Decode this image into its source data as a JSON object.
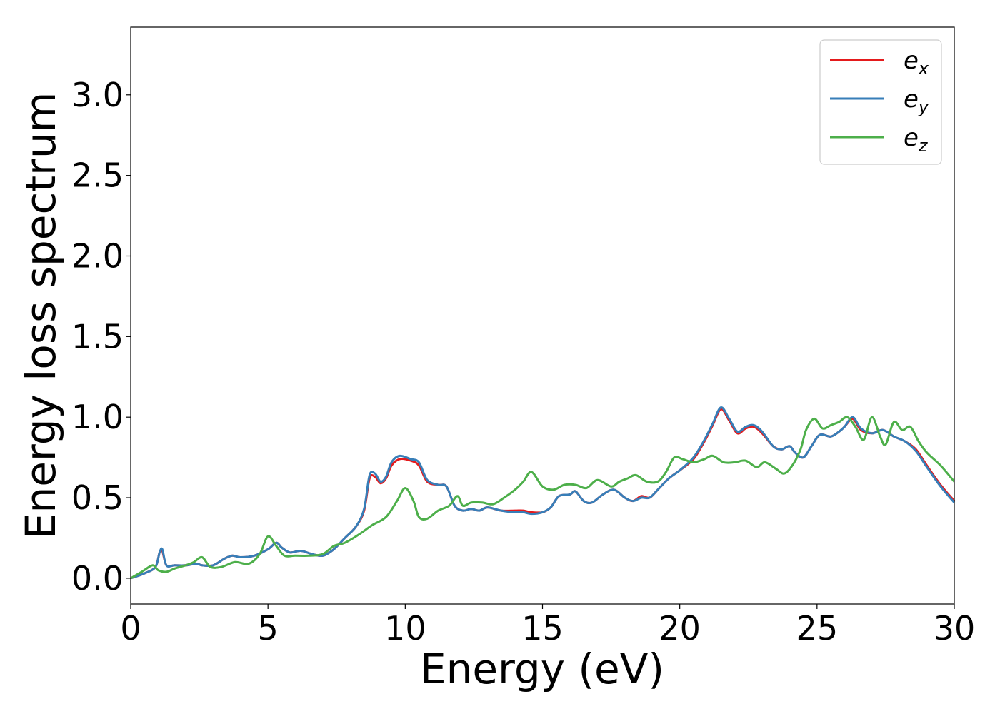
{
  "chart_data": {
    "type": "line",
    "xlabel": "Energy (eV)",
    "ylabel": "Energy loss spectrum",
    "xlim": [
      0,
      30
    ],
    "ylim": [
      -0.16,
      3.42
    ],
    "x_ticks": [
      "0",
      "5",
      "10",
      "15",
      "20",
      "25",
      "30"
    ],
    "y_ticks": [
      "0.0",
      "0.5",
      "1.0",
      "1.5",
      "2.0",
      "2.5",
      "3.0"
    ],
    "grid": false,
    "legend": {
      "placement": "top-right",
      "entries": [
        {
          "base": "e",
          "sub": "x",
          "color": "#e41a1c"
        },
        {
          "base": "e",
          "sub": "y",
          "color": "#377eb8"
        },
        {
          "base": "e",
          "sub": "z",
          "color": "#4daf4a"
        }
      ]
    },
    "series": [
      {
        "name": "e_x",
        "color": "#e41a1c",
        "x": [
          0,
          0.5,
          0.9,
          1.05,
          1.15,
          1.3,
          1.6,
          2.0,
          2.4,
          2.6,
          3.0,
          3.4,
          3.7,
          4.0,
          4.5,
          5.0,
          5.3,
          5.5,
          5.8,
          6.2,
          6.6,
          7.0,
          7.4,
          7.8,
          8.2,
          8.5,
          8.7,
          8.9,
          9.1,
          9.3,
          9.5,
          9.8,
          10.2,
          10.5,
          10.8,
          11.2,
          11.5,
          11.8,
          12.1,
          12.4,
          12.7,
          13.0,
          13.5,
          14.0,
          14.3,
          14.6,
          15.0,
          15.3,
          15.6,
          16.0,
          16.2,
          16.5,
          16.8,
          17.2,
          17.6,
          18.0,
          18.3,
          18.6,
          18.9,
          19.2,
          19.6,
          20.0,
          20.5,
          20.9,
          21.2,
          21.5,
          21.8,
          22.1,
          22.4,
          22.7,
          23.0,
          23.4,
          23.7,
          24.0,
          24.2,
          24.5,
          24.8,
          25.1,
          25.5,
          25.8,
          26.0,
          26.3,
          26.6,
          27.0,
          27.4,
          27.8,
          28.2,
          28.6,
          29.0,
          29.5,
          30.0
        ],
        "y": [
          0.0,
          0.03,
          0.07,
          0.16,
          0.17,
          0.08,
          0.08,
          0.08,
          0.09,
          0.08,
          0.08,
          0.12,
          0.14,
          0.13,
          0.14,
          0.18,
          0.22,
          0.19,
          0.16,
          0.17,
          0.15,
          0.14,
          0.18,
          0.25,
          0.32,
          0.42,
          0.62,
          0.63,
          0.59,
          0.62,
          0.7,
          0.74,
          0.73,
          0.7,
          0.6,
          0.58,
          0.57,
          0.45,
          0.42,
          0.43,
          0.42,
          0.44,
          0.42,
          0.42,
          0.42,
          0.41,
          0.41,
          0.44,
          0.51,
          0.52,
          0.54,
          0.48,
          0.47,
          0.52,
          0.55,
          0.5,
          0.48,
          0.51,
          0.5,
          0.55,
          0.62,
          0.67,
          0.74,
          0.85,
          0.95,
          1.05,
          0.98,
          0.9,
          0.93,
          0.94,
          0.9,
          0.82,
          0.8,
          0.82,
          0.78,
          0.75,
          0.82,
          0.89,
          0.88,
          0.91,
          0.94,
          0.99,
          0.92,
          0.9,
          0.92,
          0.88,
          0.85,
          0.8,
          0.7,
          0.58,
          0.48
        ]
      },
      {
        "name": "e_y",
        "color": "#377eb8",
        "x": [
          0,
          0.5,
          0.9,
          1.05,
          1.15,
          1.3,
          1.6,
          2.0,
          2.4,
          2.6,
          3.0,
          3.4,
          3.7,
          4.0,
          4.5,
          5.0,
          5.3,
          5.5,
          5.8,
          6.2,
          6.6,
          7.0,
          7.4,
          7.8,
          8.2,
          8.5,
          8.7,
          8.9,
          9.1,
          9.3,
          9.5,
          9.8,
          10.2,
          10.5,
          10.8,
          11.2,
          11.5,
          11.8,
          12.1,
          12.4,
          12.7,
          13.0,
          13.5,
          14.0,
          14.3,
          14.6,
          15.0,
          15.3,
          15.6,
          16.0,
          16.2,
          16.5,
          16.8,
          17.2,
          17.6,
          18.0,
          18.3,
          18.6,
          18.9,
          19.2,
          19.6,
          20.0,
          20.5,
          20.9,
          21.2,
          21.5,
          21.8,
          22.1,
          22.4,
          22.7,
          23.0,
          23.4,
          23.7,
          24.0,
          24.2,
          24.5,
          24.8,
          25.1,
          25.5,
          25.8,
          26.0,
          26.3,
          26.6,
          27.0,
          27.4,
          27.8,
          28.2,
          28.6,
          29.0,
          29.5,
          30.0
        ],
        "y": [
          0.0,
          0.03,
          0.07,
          0.16,
          0.18,
          0.08,
          0.08,
          0.08,
          0.09,
          0.08,
          0.08,
          0.12,
          0.14,
          0.13,
          0.14,
          0.18,
          0.22,
          0.19,
          0.16,
          0.17,
          0.15,
          0.14,
          0.18,
          0.25,
          0.32,
          0.43,
          0.64,
          0.65,
          0.6,
          0.63,
          0.72,
          0.76,
          0.74,
          0.72,
          0.61,
          0.58,
          0.57,
          0.45,
          0.42,
          0.43,
          0.42,
          0.44,
          0.42,
          0.41,
          0.41,
          0.4,
          0.41,
          0.44,
          0.51,
          0.52,
          0.54,
          0.48,
          0.47,
          0.52,
          0.55,
          0.5,
          0.48,
          0.5,
          0.5,
          0.55,
          0.62,
          0.67,
          0.75,
          0.86,
          0.96,
          1.06,
          0.99,
          0.91,
          0.94,
          0.95,
          0.91,
          0.82,
          0.8,
          0.82,
          0.78,
          0.75,
          0.82,
          0.89,
          0.88,
          0.91,
          0.94,
          1.0,
          0.93,
          0.9,
          0.92,
          0.88,
          0.85,
          0.79,
          0.69,
          0.57,
          0.47
        ]
      },
      {
        "name": "e_z",
        "color": "#4daf4a",
        "x": [
          0,
          0.4,
          0.8,
          1.0,
          1.3,
          1.6,
          2.0,
          2.3,
          2.6,
          2.9,
          3.3,
          3.8,
          4.3,
          4.7,
          5.0,
          5.3,
          5.6,
          6.0,
          6.5,
          7.0,
          7.4,
          7.8,
          8.3,
          8.8,
          9.3,
          9.7,
          10.0,
          10.3,
          10.5,
          10.8,
          11.2,
          11.6,
          11.9,
          12.1,
          12.4,
          12.8,
          13.2,
          13.6,
          14.0,
          14.3,
          14.6,
          15.0,
          15.4,
          15.8,
          16.2,
          16.6,
          17.0,
          17.5,
          17.8,
          18.1,
          18.4,
          18.8,
          19.2,
          19.5,
          19.8,
          20.1,
          20.5,
          20.9,
          21.2,
          21.6,
          22.0,
          22.4,
          22.8,
          23.1,
          23.5,
          23.8,
          24.1,
          24.4,
          24.6,
          24.9,
          25.2,
          25.5,
          25.8,
          26.1,
          26.4,
          26.7,
          27.0,
          27.3,
          27.5,
          27.8,
          28.1,
          28.4,
          28.7,
          29.0,
          29.5,
          30.0
        ],
        "y": [
          0.0,
          0.04,
          0.08,
          0.05,
          0.04,
          0.06,
          0.08,
          0.1,
          0.13,
          0.07,
          0.07,
          0.1,
          0.09,
          0.15,
          0.26,
          0.2,
          0.14,
          0.14,
          0.14,
          0.15,
          0.2,
          0.22,
          0.27,
          0.33,
          0.38,
          0.48,
          0.56,
          0.48,
          0.38,
          0.37,
          0.42,
          0.45,
          0.51,
          0.45,
          0.47,
          0.47,
          0.46,
          0.5,
          0.55,
          0.6,
          0.66,
          0.57,
          0.55,
          0.58,
          0.58,
          0.56,
          0.61,
          0.57,
          0.6,
          0.62,
          0.64,
          0.6,
          0.6,
          0.66,
          0.75,
          0.74,
          0.72,
          0.74,
          0.76,
          0.72,
          0.72,
          0.73,
          0.69,
          0.72,
          0.68,
          0.65,
          0.7,
          0.8,
          0.92,
          0.99,
          0.93,
          0.95,
          0.97,
          1.0,
          0.94,
          0.86,
          1.0,
          0.88,
          0.83,
          0.97,
          0.92,
          0.94,
          0.85,
          0.78,
          0.7,
          0.6
        ]
      }
    ]
  }
}
